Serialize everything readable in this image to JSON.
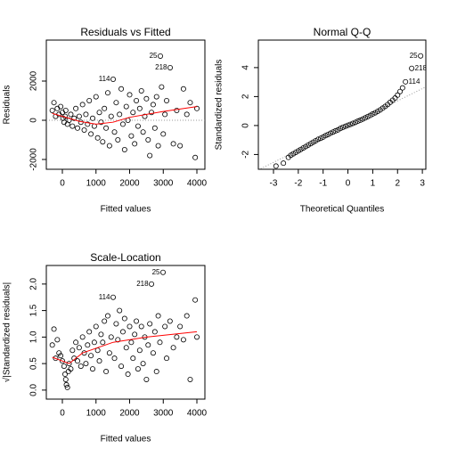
{
  "chart_data": [
    {
      "type": "scatter",
      "title": "Residuals vs Fitted",
      "xlabel": "Fitted values",
      "ylabel": "Residuals",
      "xlim": [
        -477,
        4238
      ],
      "ylim": [
        -2500,
        4090
      ],
      "xticks": [
        0,
        1000,
        2000,
        3000,
        4000
      ],
      "yticks": [
        -2000,
        0,
        2000
      ],
      "color": "#000000",
      "x": [
        -300,
        -250,
        -200,
        -150,
        -100,
        -50,
        0,
        20,
        50,
        80,
        100,
        150,
        200,
        250,
        300,
        350,
        400,
        450,
        500,
        550,
        600,
        650,
        700,
        750,
        800,
        850,
        900,
        950,
        1000,
        1050,
        1100,
        1150,
        1200,
        1250,
        1300,
        1350,
        1400,
        1450,
        1510,
        1550,
        1600,
        1650,
        1700,
        1750,
        1800,
        1850,
        1900,
        1950,
        2000,
        2050,
        2100,
        2150,
        2200,
        2250,
        2300,
        2350,
        2400,
        2450,
        2500,
        2550,
        2600,
        2650,
        2700,
        2750,
        2800,
        2850,
        2914,
        2950,
        3000,
        3050,
        3100,
        3205,
        3300,
        3400,
        3500,
        3600,
        3700,
        3800,
        3950,
        4000
      ],
      "values": [
        500,
        900,
        200,
        600,
        300,
        700,
        400,
        100,
        -100,
        200,
        500,
        -200,
        0,
        300,
        -300,
        100,
        600,
        -400,
        200,
        -100,
        800,
        -500,
        300,
        -200,
        1000,
        -700,
        100,
        -300,
        1200,
        -900,
        400,
        -100,
        -1100,
        600,
        -400,
        1400,
        -1300,
        200,
        2090,
        -600,
        900,
        -1000,
        300,
        1600,
        -200,
        -1500,
        700,
        0,
        1300,
        -800,
        400,
        -1200,
        1000,
        -300,
        600,
        1500,
        -600,
        200,
        1100,
        -1000,
        -1800,
        400,
        800,
        -400,
        1200,
        -1300,
        3273,
        1700,
        -700,
        300,
        1000,
        2682,
        -1200,
        500,
        -1300,
        1600,
        300,
        900,
        -1900,
        600
      ],
      "smooth": {
        "color": "#ff0000",
        "x": [
          -300,
          500,
          1000,
          1500,
          2000,
          3000,
          4000
        ],
        "values": [
          350,
          -50,
          -200,
          -100,
          150,
          450,
          700
        ]
      },
      "ref_line": {
        "color": "#999999",
        "x": [
          -477,
          4238
        ],
        "values": [
          0,
          0
        ]
      },
      "annotations": [
        {
          "text": "25",
          "x": 2914,
          "y": 3273
        },
        {
          "text": "218",
          "x": 3205,
          "y": 2682
        },
        {
          "text": "114",
          "x": 1510,
          "y": 2090
        }
      ]
    },
    {
      "type": "scatter",
      "title": "Normal Q-Q",
      "xlabel": "Theoretical Quantiles",
      "ylabel": "Standardized residuals",
      "xlim": [
        -3.61,
        3.14
      ],
      "ylim": [
        -3.02,
        5.9
      ],
      "xticks": [
        -3,
        -2,
        -1,
        0,
        1,
        2,
        3
      ],
      "yticks": [
        -2,
        0,
        2,
        4
      ],
      "color": "#000000",
      "x": [
        -2.9,
        -2.6,
        -2.4,
        -2.3,
        -2.2,
        -2.1,
        -2.0,
        -1.9,
        -1.8,
        -1.7,
        -1.6,
        -1.5,
        -1.4,
        -1.3,
        -1.2,
        -1.1,
        -1.0,
        -0.9,
        -0.8,
        -0.7,
        -0.6,
        -0.5,
        -0.4,
        -0.3,
        -0.2,
        -0.1,
        0,
        0.1,
        0.2,
        0.3,
        0.4,
        0.5,
        0.6,
        0.7,
        0.8,
        0.9,
        1.0,
        1.1,
        1.2,
        1.3,
        1.4,
        1.5,
        1.6,
        1.7,
        1.8,
        1.9,
        2.0,
        2.1,
        2.2,
        2.32,
        2.57,
        2.93
      ],
      "values": [
        -2.8,
        -2.6,
        -2.2,
        -2.05,
        -1.95,
        -1.85,
        -1.75,
        -1.65,
        -1.55,
        -1.45,
        -1.35,
        -1.25,
        -1.15,
        -1.05,
        -0.95,
        -0.88,
        -0.8,
        -0.7,
        -0.62,
        -0.53,
        -0.45,
        -0.37,
        -0.3,
        -0.2,
        -0.12,
        -0.05,
        0.02,
        0.08,
        0.15,
        0.22,
        0.3,
        0.37,
        0.45,
        0.53,
        0.62,
        0.7,
        0.8,
        0.88,
        0.98,
        1.08,
        1.2,
        1.32,
        1.45,
        1.6,
        1.75,
        1.9,
        2.1,
        2.35,
        2.6,
        3.02,
        3.95,
        4.81
      ],
      "ref_line": {
        "color": "#999999",
        "x": [
          -3.61,
          3.14
        ],
        "values": [
          -3.06,
          2.67
        ]
      },
      "annotations": [
        {
          "text": "25",
          "x": 2.93,
          "y": 4.81
        },
        {
          "text": "218",
          "x": 2.57,
          "y": 3.95
        },
        {
          "text": "114",
          "x": 2.32,
          "y": 3.02
        }
      ]
    },
    {
      "type": "scatter",
      "title": "Scale-Location",
      "xlabel": "Fitted values",
      "ylabel": "√|Standardized residuals|",
      "xlim": [
        -477,
        4238
      ],
      "ylim": [
        -0.17,
        2.35
      ],
      "xticks": [
        0,
        1000,
        2000,
        3000,
        4000
      ],
      "yticks": [
        {
          "value": 0,
          "label": "0.0"
        },
        0.5,
        {
          "value": 1,
          "label": "1.0"
        },
        1.5,
        {
          "value": 2,
          "label": "2.0"
        }
      ],
      "color": "#000000",
      "x": [
        -300,
        -250,
        -200,
        -150,
        -100,
        -50,
        0,
        50,
        80,
        100,
        120,
        150,
        180,
        200,
        250,
        300,
        350,
        400,
        450,
        500,
        550,
        600,
        650,
        700,
        750,
        800,
        850,
        900,
        950,
        1000,
        1050,
        1100,
        1150,
        1200,
        1250,
        1300,
        1350,
        1400,
        1450,
        1510,
        1550,
        1600,
        1650,
        1700,
        1750,
        1800,
        1850,
        1900,
        1950,
        2000,
        2050,
        2100,
        2150,
        2200,
        2250,
        2300,
        2350,
        2400,
        2450,
        2500,
        2550,
        2600,
        2650,
        2700,
        2750,
        2800,
        2850,
        2900,
        2993,
        3050,
        3100,
        3200,
        3300,
        3400,
        3500,
        3600,
        3700,
        3800,
        3950,
        4000
      ],
      "values": [
        0.85,
        1.15,
        0.6,
        0.95,
        0.7,
        0.65,
        0.55,
        0.45,
        0.3,
        0.2,
        0.1,
        0.05,
        0.35,
        0.5,
        0.4,
        0.75,
        0.6,
        0.9,
        0.55,
        0.8,
        0.45,
        1.0,
        0.7,
        0.5,
        0.85,
        1.1,
        0.65,
        0.4,
        0.9,
        1.2,
        0.75,
        0.55,
        1.05,
        0.9,
        1.3,
        0.35,
        1.4,
        0.7,
        1.0,
        1.75,
        0.6,
        1.25,
        0.95,
        1.5,
        0.45,
        1.1,
        1.35,
        0.8,
        0.3,
        1.2,
        0.9,
        0.6,
        1.05,
        1.3,
        0.4,
        0.75,
        1.2,
        0.5,
        1.0,
        0.2,
        0.85,
        1.25,
        2.0,
        0.7,
        1.1,
        0.35,
        1.4,
        0.9,
        2.22,
        1.2,
        0.6,
        1.3,
        0.8,
        1.0,
        1.2,
        0.95,
        1.4,
        0.2,
        1.7,
        1.0
      ],
      "smooth": {
        "color": "#ff0000",
        "x": [
          -300,
          200,
          600,
          1500,
          2500,
          4000
        ],
        "values": [
          0.62,
          0.5,
          0.7,
          0.9,
          1.0,
          1.1
        ]
      },
      "annotations": [
        {
          "text": "25",
          "x": 2993,
          "y": 2.22
        },
        {
          "text": "218",
          "x": 2650,
          "y": 2.0
        },
        {
          "text": "114",
          "x": 1510,
          "y": 1.75
        }
      ]
    }
  ]
}
